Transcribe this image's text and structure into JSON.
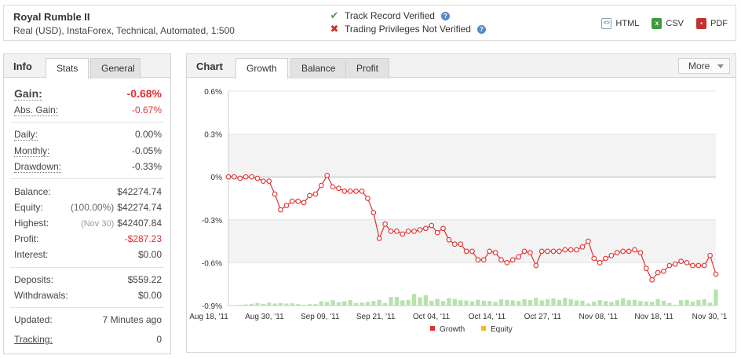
{
  "header": {
    "system_name": "Royal Rumble II",
    "system_desc": "Real (USD), InstaForex, Technical, Automated, 1:500",
    "verify": [
      {
        "label": "Track Record Verified",
        "status": "ok",
        "color": "#3aa83a"
      },
      {
        "label": "Trading Privileges Not Verified",
        "status": "fail",
        "color": "#d22a2a"
      }
    ],
    "help_glyph": "?",
    "exports": [
      {
        "label": "HTML",
        "icon": "html-icon",
        "color": "#8aa0b8"
      },
      {
        "label": "CSV",
        "icon": "csv-icon",
        "color": "#3f9a3f"
      },
      {
        "label": "PDF",
        "icon": "pdf-icon",
        "color": "#c23030"
      }
    ]
  },
  "info": {
    "title": "Info",
    "tabs": [
      "Stats",
      "General"
    ],
    "gain": {
      "label": "Gain:",
      "value": "-0.68%"
    },
    "abs_gain": {
      "label": "Abs. Gain:",
      "value": "-0.67%"
    },
    "daily": {
      "label": "Daily:",
      "value": "0.00%"
    },
    "monthly": {
      "label": "Monthly:",
      "value": "-0.05%"
    },
    "drawdown": {
      "label": "Drawdown:",
      "value": "-0.33%"
    },
    "balance": {
      "label": "Balance:",
      "value": "$42274.74"
    },
    "equity": {
      "label": "Equity:",
      "note": "(100.00%)",
      "value": "$42274.74"
    },
    "highest": {
      "label": "Highest:",
      "note": "(Nov 30)",
      "value": "$42407.84"
    },
    "profit": {
      "label": "Profit:",
      "value": "-$287.23"
    },
    "interest": {
      "label": "Interest:",
      "value": "$0.00"
    },
    "deposits": {
      "label": "Deposits:",
      "value": "$559.22"
    },
    "withdrawals": {
      "label": "Withdrawals:",
      "value": "$0.00"
    },
    "updated": {
      "label": "Updated:",
      "value": "7 Minutes ago"
    },
    "tracking": {
      "label": "Tracking:",
      "value": "0"
    }
  },
  "chart_panel": {
    "title": "Chart",
    "tabs": [
      "Growth",
      "Balance",
      "Profit"
    ],
    "more_label": "More"
  },
  "chart_data": {
    "type": "line",
    "ylim": [
      -0.9,
      0.6
    ],
    "yticks": [
      "0.6%",
      "0.3%",
      "0%",
      "-0.3%",
      "-0.6%",
      "-0.9%"
    ],
    "xticks": [
      "Aug 18, '11",
      "Aug 30, '11",
      "Sep 09, '11",
      "Sep 21, '11",
      "Oct 04, '11",
      "Oct 14, '11",
      "Oct 27, '11",
      "Nov 08, '11",
      "Nov 18, '11",
      "Nov 30, '1"
    ],
    "series": [
      {
        "name": "Growth",
        "color": "#e03030",
        "values": [
          0.0,
          0.0,
          -0.01,
          0.0,
          0.0,
          -0.01,
          -0.03,
          -0.03,
          -0.12,
          -0.23,
          -0.2,
          -0.17,
          -0.17,
          -0.18,
          -0.13,
          -0.12,
          -0.06,
          0.01,
          -0.07,
          -0.08,
          -0.1,
          -0.1,
          -0.1,
          -0.1,
          -0.15,
          -0.25,
          -0.43,
          -0.33,
          -0.38,
          -0.38,
          -0.4,
          -0.38,
          -0.38,
          -0.37,
          -0.36,
          -0.34,
          -0.39,
          -0.36,
          -0.44,
          -0.47,
          -0.47,
          -0.52,
          -0.52,
          -0.58,
          -0.58,
          -0.52,
          -0.53,
          -0.58,
          -0.6,
          -0.58,
          -0.56,
          -0.52,
          -0.53,
          -0.62,
          -0.52,
          -0.52,
          -0.52,
          -0.52,
          -0.51,
          -0.51,
          -0.51,
          -0.49,
          -0.45,
          -0.57,
          -0.6,
          -0.57,
          -0.55,
          -0.53,
          -0.52,
          -0.52,
          -0.51,
          -0.53,
          -0.64,
          -0.72,
          -0.67,
          -0.66,
          -0.62,
          -0.61,
          -0.59,
          -0.6,
          -0.62,
          -0.62,
          -0.62,
          -0.55,
          -0.68
        ]
      },
      {
        "name": "Equity",
        "color": "#f2b82a",
        "values": []
      }
    ],
    "bars": {
      "color": "#b6e2ae",
      "values": [
        0.002,
        0.003,
        0.005,
        0.008,
        0.012,
        0.018,
        0.012,
        0.02,
        0.014,
        0.018,
        0.014,
        0.016,
        0.01,
        0.006,
        0.01,
        0.01,
        0.03,
        0.026,
        0.038,
        0.024,
        0.03,
        0.038,
        0.018,
        0.022,
        0.026,
        0.032,
        0.04,
        0.018,
        0.06,
        0.06,
        0.036,
        0.04,
        0.082,
        0.058,
        0.074,
        0.034,
        0.046,
        0.032,
        0.052,
        0.046,
        0.038,
        0.036,
        0.03,
        0.04,
        0.034,
        0.032,
        0.026,
        0.044,
        0.04,
        0.036,
        0.032,
        0.044,
        0.038,
        0.054,
        0.036,
        0.044,
        0.05,
        0.04,
        0.054,
        0.044,
        0.036,
        0.034,
        0.014,
        0.028,
        0.038,
        0.032,
        0.026,
        0.038,
        0.052,
        0.038,
        0.04,
        0.032,
        0.028,
        0.026,
        0.046,
        0.034,
        0.018,
        0.006,
        0.038,
        0.04,
        0.028,
        0.04,
        0.044,
        0.02,
        0.112
      ]
    },
    "legend": [
      "Growth",
      "Equity"
    ],
    "legend_position": "bottom",
    "grid": true
  }
}
